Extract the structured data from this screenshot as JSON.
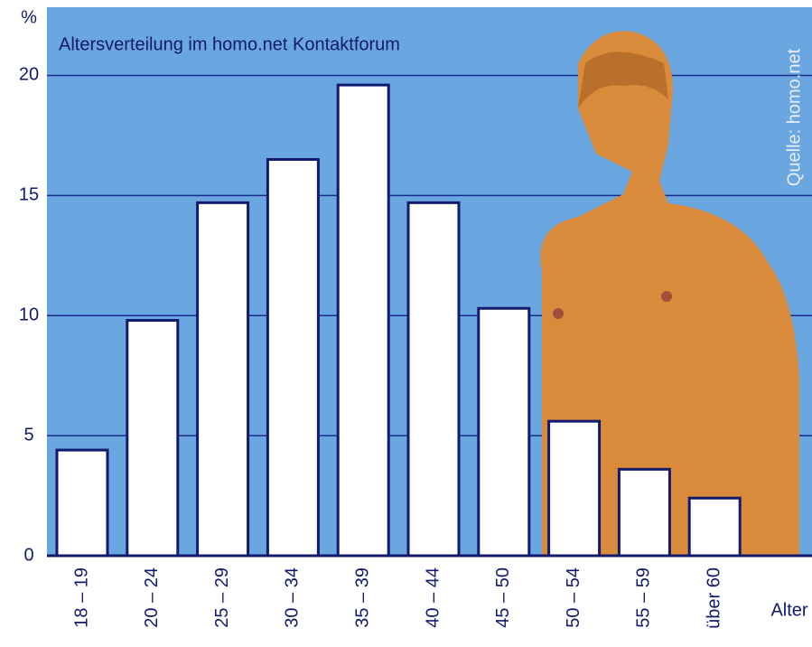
{
  "chart_data": {
    "type": "bar",
    "title": "Altersverteilung im homo.net Kontaktforum",
    "y_label": "%",
    "x_label": "Alter",
    "source": "Quelle: homo.net",
    "categories": [
      "18 – 19",
      "20 – 24",
      "25 – 29",
      "30 – 34",
      "35 – 39",
      "40 – 44",
      "45 – 50",
      "50 – 54",
      "55 – 59",
      "über 60"
    ],
    "values": [
      4.4,
      9.8,
      14.7,
      16.5,
      19.6,
      14.7,
      10.3,
      5.6,
      3.6,
      2.4
    ],
    "color": "#ffffff",
    "ylim": [
      0,
      22.5
    ],
    "yticks": [
      0,
      5,
      10,
      15,
      20
    ],
    "grid": true
  }
}
